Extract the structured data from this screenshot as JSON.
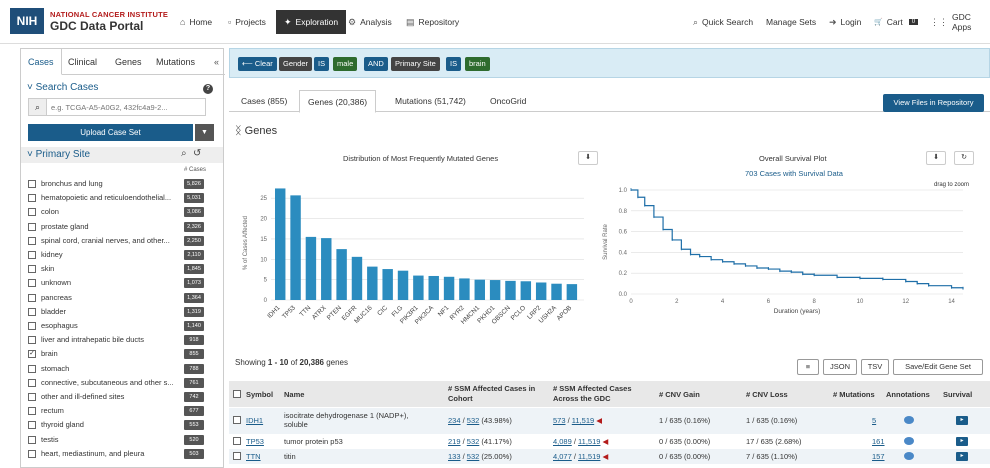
{
  "header": {
    "logo_text": "NIH",
    "brand_line1": "NATIONAL CANCER INSTITUTE",
    "brand_line2": "GDC Data Portal",
    "nav": [
      {
        "label": "Home",
        "icon": "home-icon",
        "glyph": "⌂"
      },
      {
        "label": "Projects",
        "icon": "projects-icon",
        "glyph": "▫"
      },
      {
        "label": "Exploration",
        "icon": "exploration-icon",
        "glyph": "✦"
      },
      {
        "label": "Analysis",
        "icon": "analysis-icon",
        "glyph": "⚙"
      },
      {
        "label": "Repository",
        "icon": "repository-icon",
        "glyph": "▤"
      }
    ],
    "right_nav": [
      {
        "label": "Quick Search",
        "icon": "search-icon",
        "glyph": "⌕"
      },
      {
        "label": "Manage Sets",
        "icon": "",
        "glyph": ""
      },
      {
        "label": "Login",
        "icon": "login-icon",
        "glyph": "➜"
      },
      {
        "label": "Cart",
        "icon": "cart-icon",
        "glyph": "🛒"
      },
      {
        "label": "GDC Apps",
        "icon": "apps-icon",
        "glyph": "⋮⋮"
      }
    ],
    "cart_count": "0"
  },
  "sidebar": {
    "tabs": [
      "Cases",
      "Clinical",
      "Genes",
      "Mutations"
    ],
    "collapse_glyph": "«",
    "search_title": "Search Cases",
    "search_placeholder": "e.g. TCGA-A5-A0G2, 432fc4a9-2...",
    "upload_label": "Upload Case Set",
    "facet_title": "Primary Site",
    "count_header": "# Cases",
    "items": [
      {
        "label": "bronchus and lung",
        "count": "5,826",
        "checked": false
      },
      {
        "label": "hematopoietic and reticuloendothelial...",
        "count": "5,031",
        "checked": false
      },
      {
        "label": "colon",
        "count": "3,086",
        "checked": false
      },
      {
        "label": "prostate gland",
        "count": "2,326",
        "checked": false
      },
      {
        "label": "spinal cord, cranial nerves, and other...",
        "count": "2,250",
        "checked": false
      },
      {
        "label": "kidney",
        "count": "2,110",
        "checked": false
      },
      {
        "label": "skin",
        "count": "1,845",
        "checked": false
      },
      {
        "label": "unknown",
        "count": "1,073",
        "checked": false
      },
      {
        "label": "pancreas",
        "count": "1,364",
        "checked": false
      },
      {
        "label": "bladder",
        "count": "1,319",
        "checked": false
      },
      {
        "label": "esophagus",
        "count": "1,140",
        "checked": false
      },
      {
        "label": "liver and intrahepatic bile ducts",
        "count": "918",
        "checked": false
      },
      {
        "label": "brain",
        "count": "855",
        "checked": true
      },
      {
        "label": "stomach",
        "count": "788",
        "checked": false
      },
      {
        "label": "connective, subcutaneous and other s...",
        "count": "761",
        "checked": false
      },
      {
        "label": "other and ill-defined sites",
        "count": "742",
        "checked": false
      },
      {
        "label": "rectum",
        "count": "677",
        "checked": false
      },
      {
        "label": "thyroid gland",
        "count": "553",
        "checked": false
      },
      {
        "label": "testis",
        "count": "520",
        "checked": false
      },
      {
        "label": "heart, mediastinum, and pleura",
        "count": "503",
        "checked": false
      }
    ]
  },
  "filter": {
    "pills": [
      {
        "label": "Clear",
        "kind": "clear"
      },
      {
        "label": "Gender",
        "kind": "field"
      },
      {
        "label": "IS",
        "kind": "op"
      },
      {
        "label": "male",
        "kind": "value"
      },
      {
        "label": "AND",
        "kind": "op"
      },
      {
        "label": "Primary Site",
        "kind": "field"
      },
      {
        "label": "IS",
        "kind": "op"
      },
      {
        "label": "brain",
        "kind": "value"
      }
    ]
  },
  "main_tabs": [
    "Cases (855)",
    "Genes (20,386)",
    "Mutations (51,742)",
    "OncoGrid"
  ],
  "view_files_label": "View Files in Repository",
  "genes_title": "Genes",
  "bar_chart_title": "Distribution of Most Frequently Mutated Genes",
  "survival_title": "Overall Survival Plot",
  "survival_subtitle": "703 Cases with Survival Data",
  "survival_hint": "drag to zoom",
  "chart_data": [
    {
      "type": "bar",
      "title": "Distribution of Most Frequently Mutated Genes",
      "ylabel": "% of Cases Affected",
      "xlabel": "",
      "ylim": [
        0,
        28
      ],
      "yticks": [
        0,
        5,
        10,
        15,
        20,
        25
      ],
      "categories": [
        "IDH1",
        "TP53",
        "TTN",
        "ATRX",
        "PTEN",
        "EGFR",
        "MUC16",
        "CIC",
        "FLG",
        "PIK3R1",
        "PIK3CA",
        "NF1",
        "RYR2",
        "HMCN1",
        "PKHD1",
        "OBSCN",
        "PCLO",
        "LRP2",
        "USH2A",
        "APOB"
      ],
      "values": [
        27.4,
        25.7,
        15.5,
        15.2,
        12.5,
        10.6,
        8.2,
        7.6,
        7.2,
        6.0,
        5.9,
        5.7,
        5.3,
        5.0,
        4.9,
        4.7,
        4.6,
        4.3,
        4.0,
        3.9
      ],
      "color": "#2b8cbf"
    },
    {
      "type": "line",
      "title": "Overall Survival Plot",
      "xlabel": "Duration (years)",
      "ylabel": "Survival Rate",
      "xlim": [
        0,
        14.5
      ],
      "ylim": [
        0,
        1
      ],
      "xticks": [
        0,
        2,
        4,
        6,
        8,
        10,
        12,
        14
      ],
      "yticks": [
        0.0,
        0.2,
        0.4,
        0.6,
        0.8,
        1.0
      ],
      "x": [
        0,
        0.3,
        0.6,
        1.0,
        1.4,
        1.8,
        2.2,
        2.6,
        3.0,
        3.5,
        4.0,
        4.5,
        5.0,
        5.5,
        6.0,
        6.5,
        7.0,
        7.5,
        8.0,
        9.0,
        10.0,
        11.0,
        12.0,
        12.5,
        13.0,
        14.0,
        14.5
      ],
      "y": [
        1.0,
        0.93,
        0.85,
        0.74,
        0.62,
        0.52,
        0.43,
        0.38,
        0.36,
        0.33,
        0.31,
        0.29,
        0.27,
        0.25,
        0.24,
        0.22,
        0.21,
        0.19,
        0.18,
        0.16,
        0.15,
        0.14,
        0.12,
        0.1,
        0.08,
        0.06,
        0.05
      ],
      "color": "#1f6fa8"
    }
  ],
  "table": {
    "showing_prefix": "Showing ",
    "showing_range": "1 - 10",
    "showing_mid": " of ",
    "showing_total": "20,386",
    "showing_suffix": " genes",
    "buttons": [
      "≡",
      "JSON",
      "TSV",
      "Save/Edit Gene Set"
    ],
    "headers": [
      "Symbol",
      "Name",
      "# SSM Affected Cases in Cohort",
      "# SSM Affected Cases Across the GDC",
      "# CNV Gain",
      "# CNV Loss",
      "# Mutations",
      "Annotations",
      "Survival"
    ],
    "rows": [
      {
        "symbol": "IDH1",
        "name": "isocitrate dehydrogenase 1 (NADP+), soluble",
        "ssm_n": "234",
        "ssm_d": "532",
        "ssm_pct": " (43.98%)",
        "gdc_n": "573",
        "gdc_d": "11,519",
        "cnv_gain": "1 / 635 (0.16%)",
        "cnv_loss": "1 / 635 (0.16%)",
        "mutations": "5"
      },
      {
        "symbol": "TP53",
        "name": "tumor protein p53",
        "ssm_n": "219",
        "ssm_d": "532",
        "ssm_pct": " (41.17%)",
        "gdc_n": "4,089",
        "gdc_d": "11,519",
        "cnv_gain": "0 / 635 (0.00%)",
        "cnv_loss": "17 / 635 (2.68%)",
        "mutations": "161"
      },
      {
        "symbol": "TTN",
        "name": "titin",
        "ssm_n": "133",
        "ssm_d": "532",
        "ssm_pct": " (25.00%)",
        "gdc_n": "4,077",
        "gdc_d": "11,519",
        "cnv_gain": "0 / 635 (0.00%)",
        "cnv_loss": "7 / 635 (1.10%)",
        "mutations": "157"
      }
    ]
  }
}
